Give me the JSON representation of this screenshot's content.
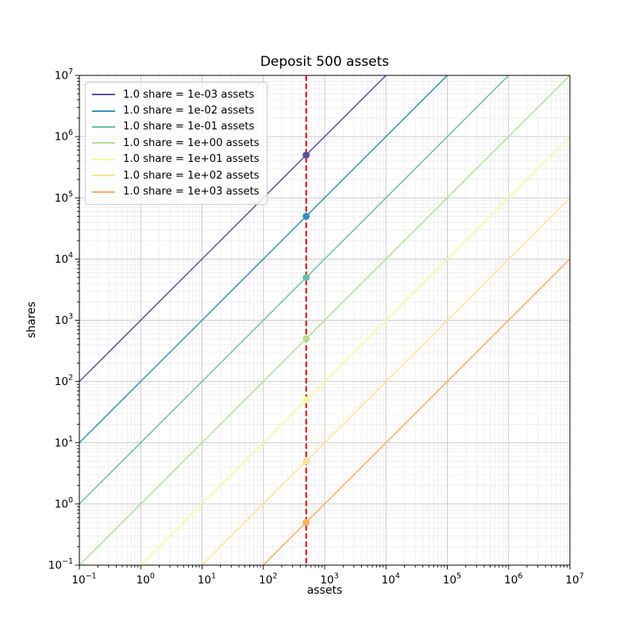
{
  "figure_title": "Deposit 500 assets",
  "chart_data": {
    "type": "line",
    "title": "Deposit 500 assets",
    "xlabel": "assets",
    "ylabel": "shares",
    "xscale": "log",
    "yscale": "log",
    "xlim": [
      0.1,
      10000000
    ],
    "ylim": [
      0.1,
      10000000
    ],
    "x_tick_exponents": [
      -1,
      0,
      1,
      2,
      3,
      4,
      5,
      6,
      7
    ],
    "y_tick_exponents": [
      -1,
      0,
      1,
      2,
      3,
      4,
      5,
      6,
      7
    ],
    "grid": "both-major-and-minor",
    "legend_position": "upper-left",
    "deposit_line": {
      "x_assets": 500,
      "color": "#f00000",
      "style": "dashed"
    },
    "series": [
      {
        "label": "1.0 share = 1e-03 assets",
        "assets_per_share": 0.001,
        "color": "#5e4fa2",
        "point": {
          "assets": 500,
          "shares": 500000
        }
      },
      {
        "label": "1.0 share = 1e-02 assets",
        "assets_per_share": 0.01,
        "color": "#3a8ebd",
        "point": {
          "assets": 500,
          "shares": 50000
        }
      },
      {
        "label": "1.0 share = 1e-01 assets",
        "assets_per_share": 0.1,
        "color": "#66c2a5",
        "point": {
          "assets": 500,
          "shares": 5000
        }
      },
      {
        "label": "1.0 share = 1e+00 assets",
        "assets_per_share": 1,
        "color": "#b2e095",
        "point": {
          "assets": 500,
          "shares": 500
        }
      },
      {
        "label": "1.0 share = 1e+01 assets",
        "assets_per_share": 10,
        "color": "#f3fa9f",
        "point": {
          "assets": 500,
          "shares": 50
        }
      },
      {
        "label": "1.0 share = 1e+02 assets",
        "assets_per_share": 100,
        "color": "#fee391",
        "point": {
          "assets": 500,
          "shares": 5
        }
      },
      {
        "label": "1.0 share = 1e+03 assets",
        "assets_per_share": 1000,
        "color": "#fdae61",
        "point": {
          "assets": 500,
          "shares": 0.5
        }
      }
    ],
    "colors": {
      "background": "#ffffff",
      "major_grid": "#cbcbcb",
      "minor_grid": "#e9e9e9",
      "axis": "#000000",
      "text": "#000000"
    }
  }
}
